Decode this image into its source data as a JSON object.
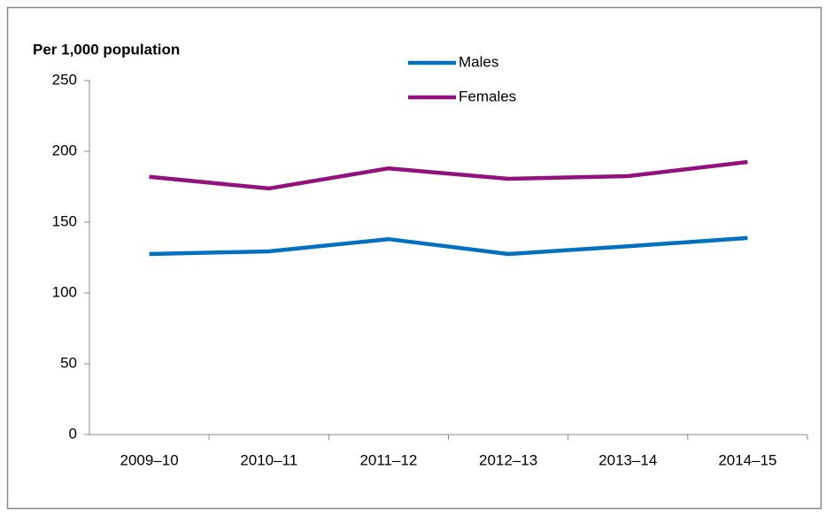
{
  "chart_data": {
    "type": "line",
    "title": "Per 1,000 population",
    "categories": [
      "2009–10",
      "2010–11",
      "2011–12",
      "2012–13",
      "2013–14",
      "2014–15"
    ],
    "series": [
      {
        "name": "Males",
        "color": "#0070c0",
        "values": [
          127.5,
          129.4,
          138,
          127.5,
          133,
          138.8
        ]
      },
      {
        "name": "Females",
        "color": "#93117e",
        "values": [
          182,
          173.8,
          188,
          180.6,
          182.5,
          192.5
        ]
      }
    ],
    "ylim": [
      0,
      250
    ],
    "yticks": [
      0,
      50,
      100,
      150,
      200,
      250
    ],
    "grid": false
  }
}
